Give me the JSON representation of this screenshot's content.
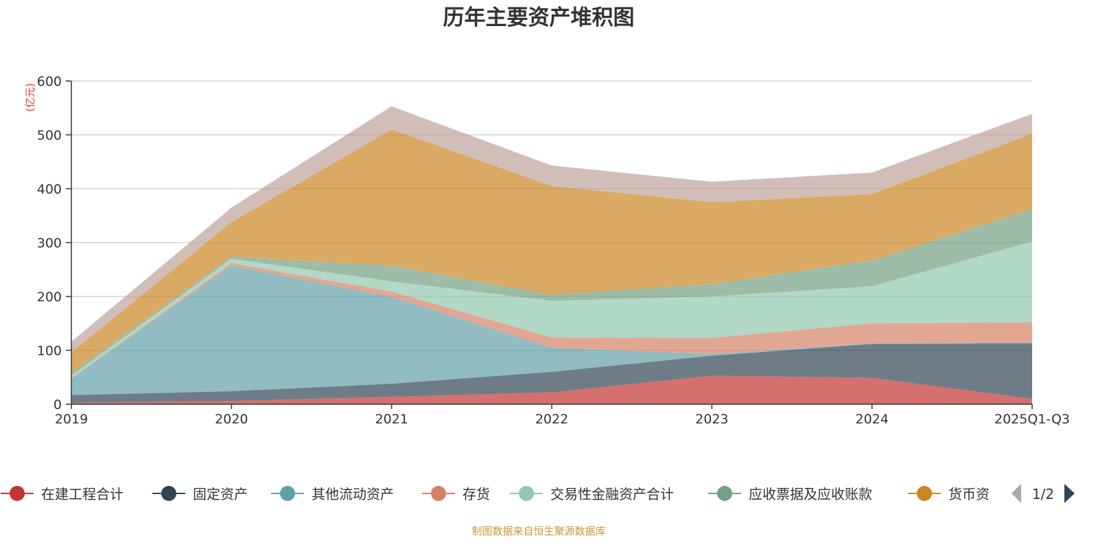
{
  "chart_data": {
    "type": "area",
    "stacked": true,
    "title": "历年主要资产堆积图",
    "ylabel": "(亿元)",
    "xlabel": "",
    "categories": [
      "2019",
      "2020",
      "2021",
      "2022",
      "2023",
      "2024",
      "2025Q1-Q3"
    ],
    "ylim": [
      0,
      600
    ],
    "yticks": [
      0,
      100,
      200,
      300,
      400,
      500,
      600
    ],
    "grid": true,
    "legend_placement": "bottom",
    "legend_page": "1/2",
    "series": [
      {
        "name": "在建工程合计",
        "color": "#c23531",
        "values": [
          3,
          6,
          14,
          22,
          53,
          49,
          10
        ]
      },
      {
        "name": "固定资产",
        "color": "#2f4554",
        "values": [
          14,
          18,
          24,
          38,
          37,
          63,
          103
        ]
      },
      {
        "name": "其他流动资产",
        "color": "#61a0a8",
        "values": [
          30,
          233,
          161,
          45,
          3,
          1,
          1
        ]
      },
      {
        "name": "存货",
        "color": "#d48265",
        "values": [
          1,
          5,
          10,
          19,
          30,
          37,
          38
        ]
      },
      {
        "name": "交易性金融资产合计",
        "color": "#91c7ae",
        "values": [
          5,
          8,
          19,
          68,
          77,
          69,
          150
        ]
      },
      {
        "name": "应收票据及应收账款",
        "color": "#749f83",
        "values": [
          5,
          4,
          29,
          11,
          23,
          48,
          60
        ]
      },
      {
        "name": "货币资",
        "color": "#ca8622",
        "values": [
          38,
          64,
          253,
          202,
          152,
          123,
          140
        ]
      },
      {
        "color": "#bda29a",
        "values": [
          20,
          27,
          43,
          38,
          38,
          40,
          37
        ]
      }
    ]
  },
  "footer": "制图数据来自恒生聚源数据库"
}
